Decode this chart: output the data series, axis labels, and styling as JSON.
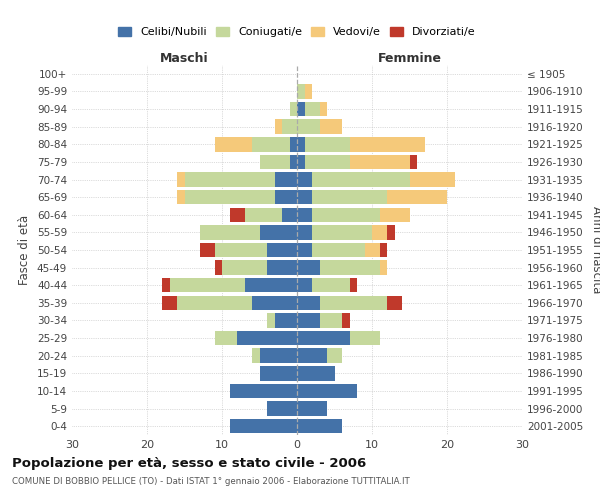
{
  "age_groups": [
    "0-4",
    "5-9",
    "10-14",
    "15-19",
    "20-24",
    "25-29",
    "30-34",
    "35-39",
    "40-44",
    "45-49",
    "50-54",
    "55-59",
    "60-64",
    "65-69",
    "70-74",
    "75-79",
    "80-84",
    "85-89",
    "90-94",
    "95-99",
    "100+"
  ],
  "birth_years": [
    "2001-2005",
    "1996-2000",
    "1991-1995",
    "1986-1990",
    "1981-1985",
    "1976-1980",
    "1971-1975",
    "1966-1970",
    "1961-1965",
    "1956-1960",
    "1951-1955",
    "1946-1950",
    "1941-1945",
    "1936-1940",
    "1931-1935",
    "1926-1930",
    "1921-1925",
    "1916-1920",
    "1911-1915",
    "1906-1910",
    "≤ 1905"
  ],
  "males": {
    "celibi": [
      9,
      4,
      9,
      5,
      5,
      8,
      3,
      6,
      7,
      4,
      4,
      5,
      2,
      3,
      3,
      1,
      1,
      0,
      0,
      0,
      0
    ],
    "coniugati": [
      0,
      0,
      0,
      0,
      1,
      3,
      1,
      10,
      10,
      6,
      7,
      8,
      5,
      12,
      12,
      4,
      5,
      2,
      1,
      0,
      0
    ],
    "vedovi": [
      0,
      0,
      0,
      0,
      0,
      0,
      0,
      0,
      0,
      0,
      0,
      0,
      0,
      1,
      1,
      0,
      5,
      1,
      0,
      0,
      0
    ],
    "divorziati": [
      0,
      0,
      0,
      0,
      0,
      0,
      0,
      2,
      1,
      1,
      2,
      0,
      2,
      0,
      0,
      0,
      0,
      0,
      0,
      0,
      0
    ]
  },
  "females": {
    "nubili": [
      6,
      4,
      8,
      5,
      4,
      7,
      3,
      3,
      2,
      3,
      2,
      2,
      2,
      2,
      2,
      1,
      1,
      0,
      1,
      0,
      0
    ],
    "coniugate": [
      0,
      0,
      0,
      0,
      2,
      4,
      3,
      9,
      5,
      8,
      7,
      8,
      9,
      10,
      13,
      6,
      6,
      3,
      2,
      1,
      0
    ],
    "vedove": [
      0,
      0,
      0,
      0,
      0,
      0,
      0,
      0,
      0,
      1,
      2,
      2,
      4,
      8,
      6,
      8,
      10,
      3,
      1,
      1,
      0
    ],
    "divorziate": [
      0,
      0,
      0,
      0,
      0,
      0,
      1,
      2,
      1,
      0,
      1,
      1,
      0,
      0,
      0,
      1,
      0,
      0,
      0,
      0,
      0
    ]
  },
  "colors": {
    "celibi_nubili": "#4472a8",
    "coniugati": "#c5d89c",
    "vedovi": "#f5c97a",
    "divorziati": "#c0392b"
  },
  "xlim": 30,
  "title": "Popolazione per età, sesso e stato civile - 2006",
  "subtitle": "COMUNE DI BOBBIO PELLICE (TO) - Dati ISTAT 1° gennaio 2006 - Elaborazione TUTTITALIA.IT",
  "ylabel": "Fasce di età",
  "ylabel_right": "Anni di nascita",
  "xlabel_left": "Maschi",
  "xlabel_right": "Femmine",
  "legend_labels": [
    "Celibi/Nubili",
    "Coniugati/e",
    "Vedovi/e",
    "Divorziati/e"
  ],
  "background_color": "#ffffff",
  "grid_color": "#bbbbbb"
}
